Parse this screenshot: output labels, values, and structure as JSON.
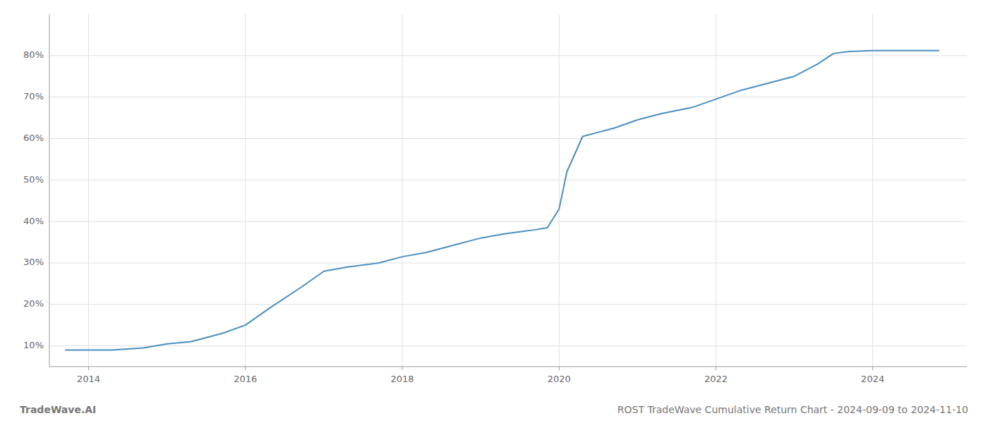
{
  "chart_data": {
    "type": "line",
    "title": "ROST TradeWave Cumulative Return Chart - 2024-09-09 to 2024-11-10",
    "annotations": [
      "TradeWave.AI"
    ],
    "x": [
      2013.7,
      2014.0,
      2014.3,
      2014.7,
      2015.0,
      2015.3,
      2015.7,
      2016.0,
      2016.3,
      2016.7,
      2017.0,
      2017.3,
      2017.7,
      2018.0,
      2018.3,
      2018.7,
      2019.0,
      2019.3,
      2019.5,
      2019.7,
      2019.85,
      2020.0,
      2020.1,
      2020.3,
      2020.5,
      2020.7,
      2021.0,
      2021.3,
      2021.7,
      2022.0,
      2022.3,
      2022.7,
      2023.0,
      2023.3,
      2023.5,
      2023.7,
      2024.0,
      2024.3,
      2024.7,
      2024.85
    ],
    "values": [
      9.0,
      9.0,
      9.0,
      9.5,
      10.5,
      11.0,
      13.0,
      15.0,
      19.0,
      24.0,
      28.0,
      29.0,
      30.0,
      31.5,
      32.5,
      34.5,
      36.0,
      37.0,
      37.5,
      38.0,
      38.5,
      43.0,
      52.0,
      60.5,
      61.5,
      62.5,
      64.5,
      66.0,
      67.5,
      69.5,
      71.5,
      73.5,
      75.0,
      78.0,
      80.5,
      81.0,
      81.2,
      81.2,
      81.2,
      81.2
    ],
    "color": "#4a8fc0",
    "xlim": [
      2013.5,
      2025.2
    ],
    "ylim": [
      5,
      90
    ],
    "xticks": [
      2014,
      2016,
      2018,
      2020,
      2022,
      2024
    ],
    "yticks": [
      {
        "value": 10,
        "label": "10%"
      },
      {
        "value": 20,
        "label": "20%"
      },
      {
        "value": 30,
        "label": "30%"
      },
      {
        "value": 40,
        "label": "40%"
      },
      {
        "value": 50,
        "label": "50%"
      },
      {
        "value": 60,
        "label": "60%"
      },
      {
        "value": 70,
        "label": "70%"
      },
      {
        "value": 80,
        "label": "80%"
      }
    ],
    "grid": true
  }
}
